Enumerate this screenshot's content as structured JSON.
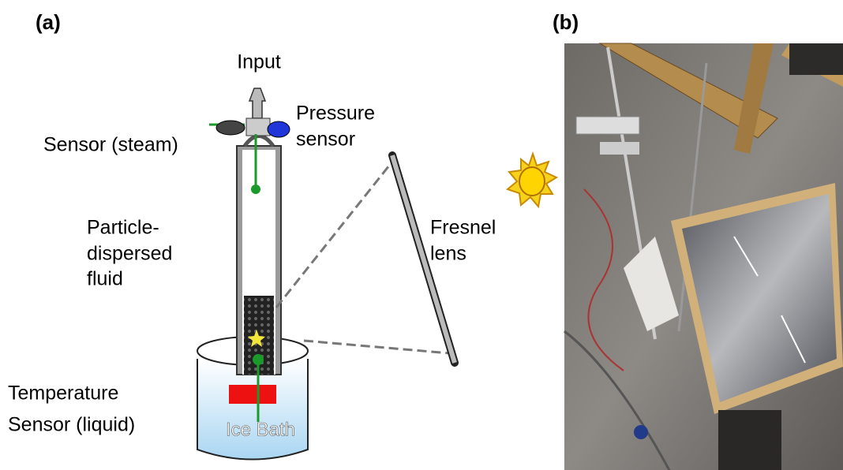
{
  "panel_a": {
    "label": "(a)",
    "input": "Input",
    "pressure_sensor": [
      "Pressure",
      "sensor"
    ],
    "steam_sensor": "Sensor (steam)",
    "fluid": [
      "Particle-",
      "dispersed",
      "fluid"
    ],
    "fresnel": [
      "Fresnel",
      "lens"
    ],
    "temperature_sensor": [
      "Temperature",
      "Sensor (liquid)"
    ],
    "ice_bath": "Ice Bath"
  },
  "panel_b": {
    "label": "(b)"
  }
}
